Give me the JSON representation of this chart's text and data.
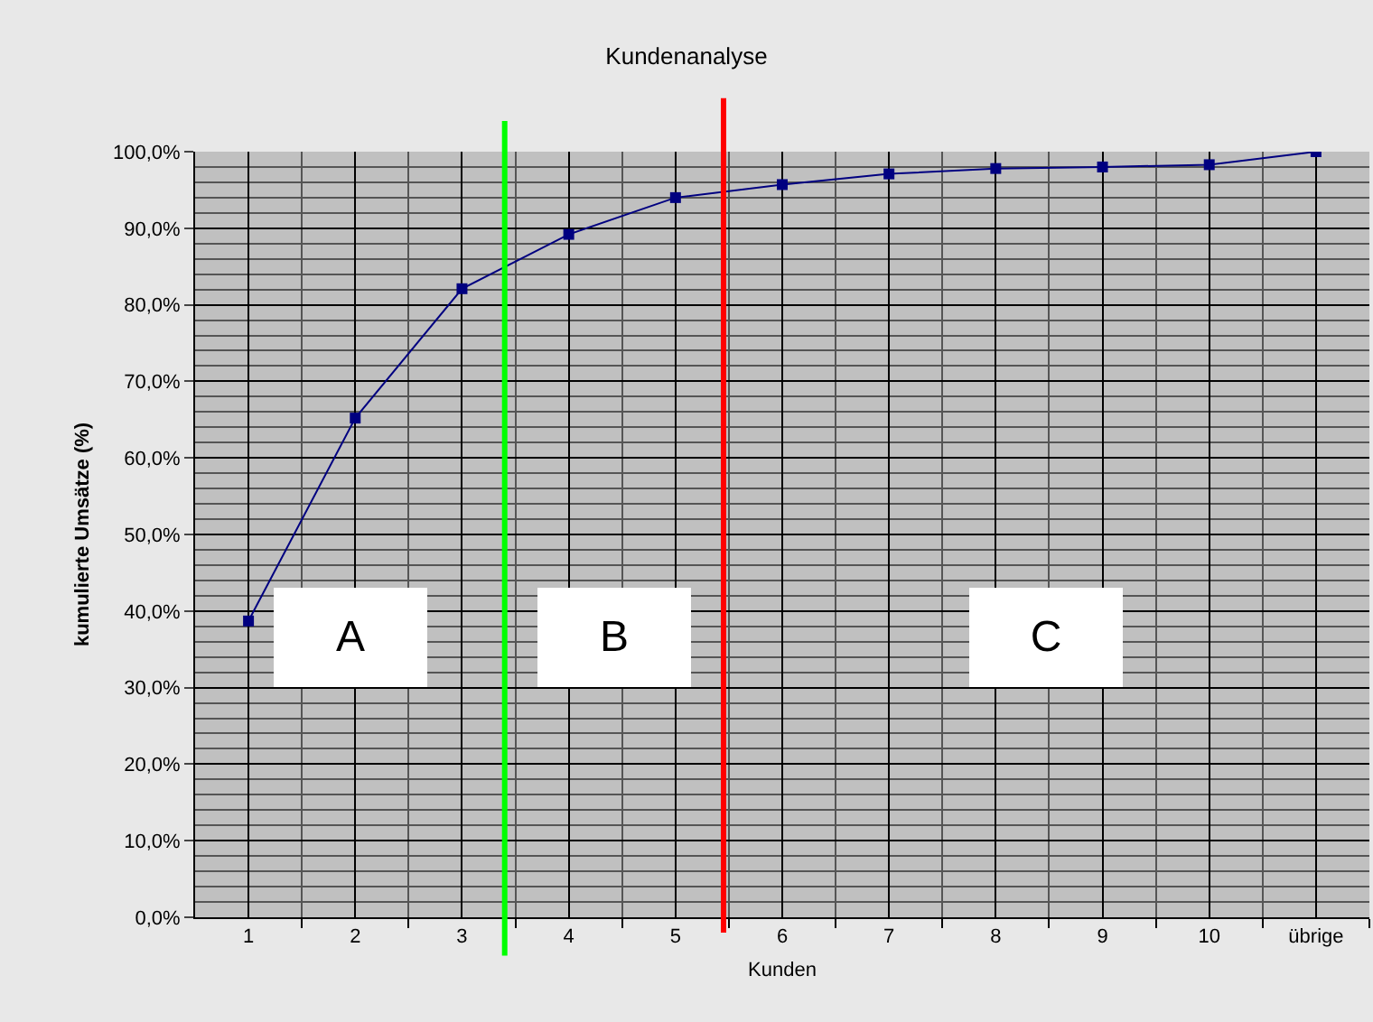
{
  "chart_data": {
    "type": "line",
    "title": "Kundenanalyse",
    "xlabel": "Kunden",
    "ylabel": "kumulierte Umsätze (%)",
    "x": [
      1,
      2,
      3,
      4,
      5,
      6,
      7,
      8,
      9,
      10,
      11
    ],
    "series": [
      {
        "color": "#000080",
        "values": [
          38.7,
          65.2,
          82.1,
          89.2,
          94.0,
          95.7,
          97.1,
          97.8,
          98.0,
          98.3,
          100.0
        ]
      }
    ],
    "xlim": [
      0.5,
      11.5
    ],
    "xticks": [
      1,
      2,
      3,
      4,
      5,
      6,
      7,
      8,
      9,
      10,
      {
        "value": 11,
        "label": "übrige"
      }
    ],
    "ylim": [
      0,
      100
    ],
    "yticks": [
      {
        "value": 0,
        "label": "0,0%"
      },
      {
        "value": 10,
        "label": "10,0%"
      },
      {
        "value": 20,
        "label": "20,0%"
      },
      {
        "value": 30,
        "label": "30,0%"
      },
      {
        "value": 40,
        "label": "40,0%"
      },
      {
        "value": 50,
        "label": "50,0%"
      },
      {
        "value": 60,
        "label": "60,0%"
      },
      {
        "value": 70,
        "label": "70,0%"
      },
      {
        "value": 80,
        "label": "80,0%"
      },
      {
        "value": 90,
        "label": "90,0%"
      },
      {
        "value": 100,
        "label": "100,0%"
      }
    ],
    "ref_lines": [
      {
        "axis": "x",
        "value": 3.4,
        "color": "#00ff00"
      },
      {
        "axis": "x",
        "value": 5.45,
        "color": "#ff0000"
      }
    ],
    "annotations": [
      "A",
      "B",
      "C"
    ],
    "grid": true,
    "marker": "square",
    "line_style": "solid"
  }
}
